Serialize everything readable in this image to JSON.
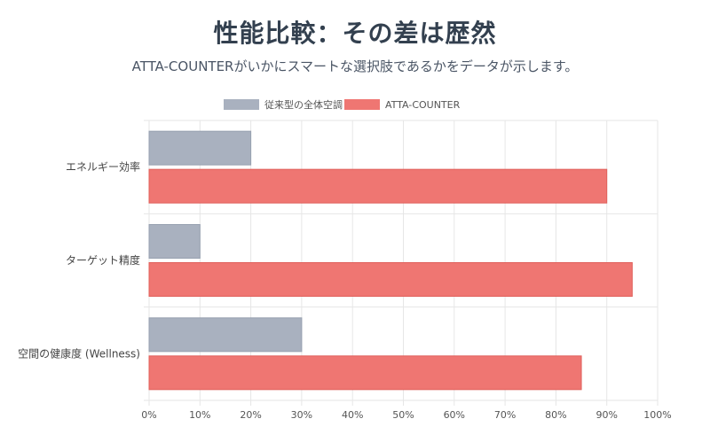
{
  "header": {
    "title": "性能比較：その差は歴然",
    "subtitle": "ATTA-COUNTERがいかにスマートな選択肢であるかをデータが示します。"
  },
  "colors": {
    "series_traditional": "#a9b1bf",
    "series_atta": "#ef7672",
    "grid": "#e6e6e6",
    "axis": "#cccccc"
  },
  "chart_data": {
    "type": "bar",
    "orientation": "horizontal",
    "categories": [
      "エネルギー効率",
      "ターゲット精度",
      "空間の健康度 (Wellness)"
    ],
    "series": [
      {
        "name": "従来型の全体空調",
        "values": [
          20,
          10,
          30
        ]
      },
      {
        "name": "ATTA-COUNTER",
        "values": [
          90,
          95,
          85
        ]
      }
    ],
    "xlim": [
      0,
      100
    ],
    "xticks": [
      "0%",
      "10%",
      "20%",
      "30%",
      "40%",
      "50%",
      "60%",
      "70%",
      "80%",
      "90%",
      "100%"
    ],
    "grid": true,
    "legend_position": "top-center"
  }
}
